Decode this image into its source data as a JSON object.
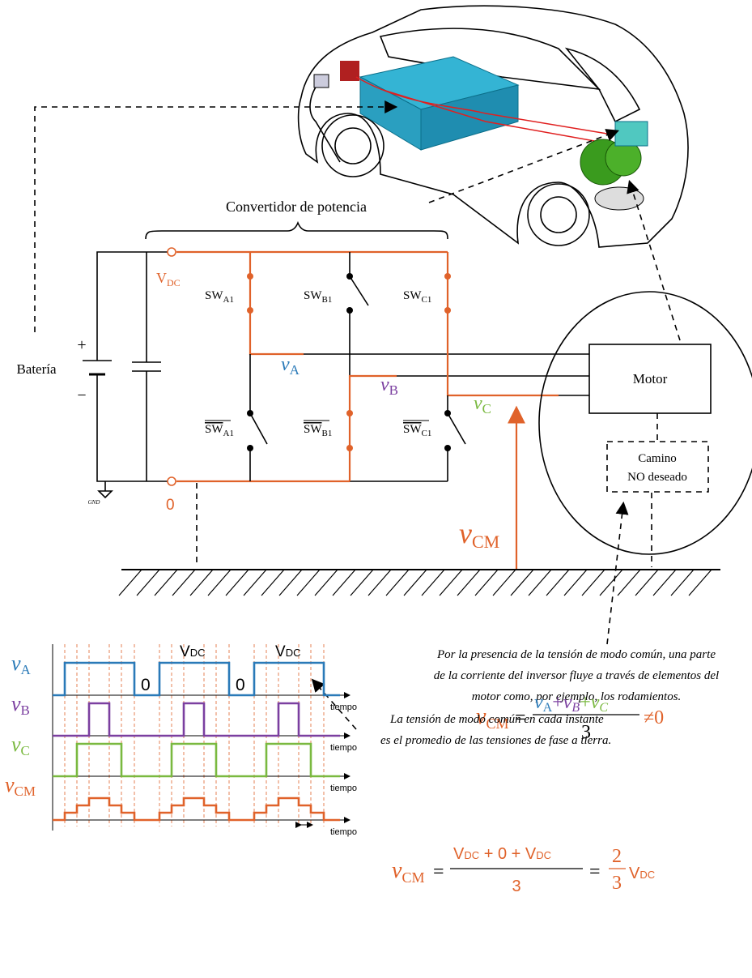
{
  "converter": {
    "title": "Convertidor de potencia",
    "vdc": {
      "main": "V",
      "sub": "DC"
    },
    "zero": "0",
    "switches_top": [
      {
        "main": "SW",
        "sub": "A1"
      },
      {
        "main": "SW",
        "sub": "B1"
      },
      {
        "main": "SW",
        "sub": "C1"
      }
    ],
    "switches_bottom": [
      {
        "main": "SW",
        "sub": "A1"
      },
      {
        "main": "SW",
        "sub": "B1"
      },
      {
        "main": "SW",
        "sub": "C1"
      }
    ],
    "phases": [
      {
        "main": "v",
        "sub": "A"
      },
      {
        "main": "v",
        "sub": "B"
      },
      {
        "main": "v",
        "sub": "C"
      }
    ],
    "battery": "Batería",
    "plus": "+",
    "minus": "−",
    "gnd": "GND",
    "motor": "Motor",
    "path": [
      "Camino",
      "NO deseado"
    ],
    "vcm": {
      "main": "v",
      "sub": "CM"
    }
  },
  "waveforms": {
    "labels": [
      {
        "main": "v",
        "sub": "A"
      },
      {
        "main": "v",
        "sub": "B"
      },
      {
        "main": "v",
        "sub": "C"
      },
      {
        "main": "v",
        "sub": "CM"
      }
    ],
    "level_high": {
      "main": "V",
      "sub": "DC"
    },
    "level_low": "0",
    "axis": "tiempo"
  },
  "notes": {
    "common_mode": [
      "Por la presencia de la tensión de modo común, una parte",
      "de la corriente del inversor fluye a través de elementos del",
      "motor como, por ejemplo, los rodamientos."
    ],
    "formula1": {
      "lhs": {
        "main": "v",
        "sub": "CM"
      },
      "eq": "=",
      "num": [
        {
          "main": "v",
          "sub": "A"
        },
        "+",
        {
          "main": "v",
          "sub": "B"
        },
        "+",
        {
          "main": "v",
          "sub": "C"
        }
      ],
      "den": "3",
      "rhs": "≠0"
    },
    "average": [
      "La tensión de modo común en cada instante",
      "es el promedio de las tensiones de fase a tierra."
    ],
    "formula2": {
      "lhs": {
        "main": "v",
        "sub": "CM"
      },
      "eq": "=",
      "num": [
        {
          "main": "V",
          "sub": "DC"
        },
        "+",
        "0",
        "+",
        {
          "main": "V",
          "sub": "DC"
        }
      ],
      "den": "3",
      "eq2": "=",
      "frac_num": "2",
      "frac_den": "3",
      "tail": {
        "main": "V",
        "sub": "DC"
      }
    }
  }
}
